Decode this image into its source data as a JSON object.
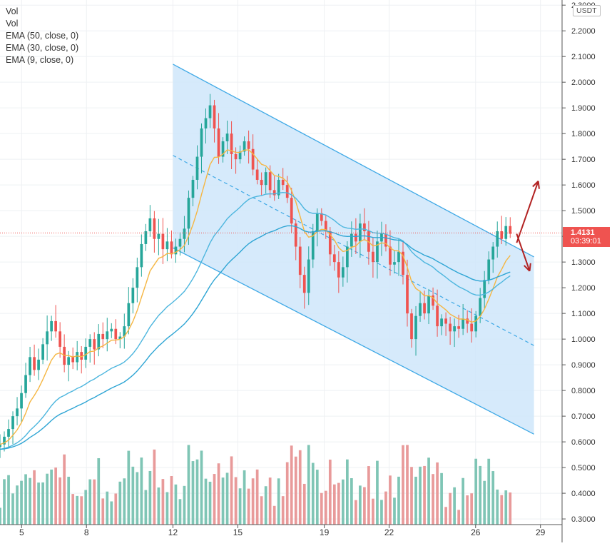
{
  "legend": [
    "Vol",
    "Vol",
    "EMA (50, close, 0)",
    "EMA (30, close, 0)",
    "EMA (9, close, 0)"
  ],
  "currency": "USDT",
  "last_price": "1.4131",
  "countdown": "03:39:01",
  "colors": {
    "up": "#26a69a",
    "down": "#ef5350",
    "vol_up": "#7fc5b5",
    "vol_down": "#e89a9a",
    "ema9": "#f5b642",
    "ema30": "#4db6de",
    "ema50": "#2ea5d4",
    "channel_fill": "#cfe6fa",
    "channel_line": "#3fa9e6",
    "arrow": "#b22222"
  },
  "chart_data": {
    "type": "candlestick",
    "title": "",
    "xlabel": "",
    "ylabel": "",
    "y_ticks": [
      "0.3000",
      "0.4000",
      "0.5000",
      "0.6000",
      "0.7000",
      "0.8000",
      "0.9000",
      "1.0000",
      "1.1000",
      "1.2000",
      "1.3000",
      "1.4000",
      "1.5000",
      "1.6000",
      "1.7000",
      "1.8000",
      "1.9000",
      "2.0000",
      "2.1000",
      "2.2000",
      "2.3000"
    ],
    "x_ticks": [
      "5",
      "8",
      "12",
      "15",
      "19",
      "22",
      "26",
      "29"
    ],
    "ylim": [
      0.278,
      2.32
    ],
    "x_domain": [
      4.0,
      30.0
    ],
    "closes": [
      0.59,
      0.62,
      0.65,
      0.7,
      0.73,
      0.79,
      0.86,
      0.93,
      0.88,
      0.92,
      0.98,
      1.03,
      1.07,
      1.03,
      0.97,
      0.9,
      0.93,
      0.91,
      0.95,
      0.92,
      0.97,
      1.0,
      0.96,
      1.02,
      1.0,
      1.03,
      1.04,
      1.0,
      1.01,
      1.05,
      1.14,
      1.2,
      1.28,
      1.37,
      1.42,
      1.47,
      1.39,
      1.41,
      1.35,
      1.38,
      1.33,
      1.36,
      1.39,
      1.43,
      1.55,
      1.62,
      1.71,
      1.82,
      1.86,
      1.91,
      1.82,
      1.71,
      1.77,
      1.8,
      1.72,
      1.7,
      1.73,
      1.77,
      1.74,
      1.66,
      1.62,
      1.6,
      1.65,
      1.58,
      1.56,
      1.62,
      1.6,
      1.55,
      1.45,
      1.36,
      1.25,
      1.18,
      1.31,
      1.42,
      1.49,
      1.46,
      1.42,
      1.33,
      1.3,
      1.24,
      1.28,
      1.36,
      1.41,
      1.38,
      1.45,
      1.42,
      1.34,
      1.3,
      1.38,
      1.41,
      1.36,
      1.29,
      1.3,
      1.34,
      1.25,
      1.1,
      1.0,
      1.09,
      1.14,
      1.1,
      1.17,
      1.13,
      1.05,
      1.08,
      1.06,
      1.03,
      1.05,
      1.04,
      1.08,
      1.06,
      1.03,
      1.09,
      1.16,
      1.23,
      1.31,
      1.36,
      1.42,
      1.39,
      1.44,
      1.41
    ],
    "open_first": 0.58,
    "volume_ylim": [
      0.3,
      0.62
    ],
    "channel": {
      "upper": [
        [
          12.0,
          2.07
        ],
        [
          28.7,
          1.32
        ]
      ],
      "mid": [
        [
          12.0,
          1.715
        ],
        [
          28.7,
          0.975
        ]
      ],
      "lower": [
        [
          12.0,
          1.355
        ],
        [
          28.7,
          0.63
        ]
      ]
    },
    "forecast_arrows": [
      {
        "from": [
          27.9,
          1.375
        ],
        "to": [
          28.9,
          1.615
        ]
      },
      {
        "from": [
          27.9,
          1.41
        ],
        "to": [
          28.5,
          1.265
        ]
      }
    ]
  }
}
